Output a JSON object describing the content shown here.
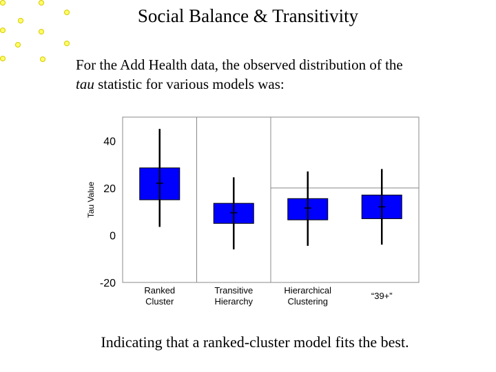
{
  "slide": {
    "title": "Social Balance & Transitivity",
    "intro_line1": "For the Add Health data, the observed distribution of the",
    "intro_italic": "tau",
    "intro_line2_rest": " statistic for various models was:",
    "conclusion": "Indicating that a ranked-cluster model fits the best."
  },
  "colors": {
    "box_fill": "#0000ff",
    "dots": "#ffff66",
    "dot_stroke": "#d8c800"
  },
  "chart_data": {
    "type": "boxplot",
    "title": "",
    "xlabel": "",
    "ylabel": "Tau Value",
    "ylim": [
      -20,
      50
    ],
    "yticks": [
      -20,
      0,
      20,
      40
    ],
    "categories": [
      [
        "Ranked",
        "Cluster"
      ],
      [
        "Transitive",
        "Hierarchy"
      ],
      [
        "Hierarchical",
        "Clustering"
      ],
      [
        "“39+”"
      ]
    ],
    "boxes": [
      {
        "min": 3.5,
        "q1": 15,
        "median": 22,
        "q3": 28.5,
        "max": 45
      },
      {
        "min": -6,
        "q1": 5,
        "median": 9.5,
        "q3": 13.5,
        "max": 24.5
      },
      {
        "min": -4.5,
        "q1": 6.5,
        "median": 11.5,
        "q3": 15.5,
        "max": 27
      },
      {
        "min": -4,
        "q1": 7,
        "median": 12,
        "q3": 17,
        "max": 28
      }
    ],
    "grid": true
  }
}
